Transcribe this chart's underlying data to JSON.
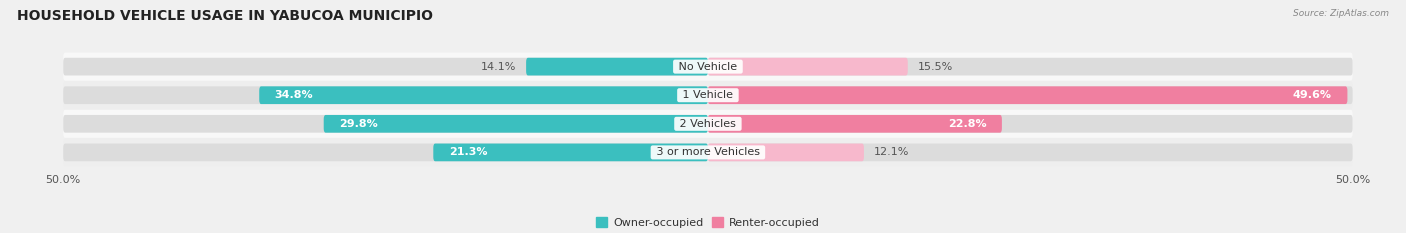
{
  "title": "HOUSEHOLD VEHICLE USAGE IN YABUCOA MUNICIPIO",
  "source": "Source: ZipAtlas.com",
  "categories": [
    "No Vehicle",
    "1 Vehicle",
    "2 Vehicles",
    "3 or more Vehicles"
  ],
  "owner_values": [
    14.1,
    34.8,
    29.8,
    21.3
  ],
  "renter_values": [
    15.5,
    49.6,
    22.8,
    12.1
  ],
  "owner_color": "#3bbfbf",
  "renter_color": "#f07fa0",
  "renter_color_light": "#f7b8cc",
  "axis_max": 50.0,
  "background_color": "#f0f0f0",
  "bar_bg_color": "#dcdcdc",
  "title_fontsize": 10,
  "label_fontsize": 8,
  "category_fontsize": 8,
  "axis_fontsize": 8,
  "bar_height": 0.62,
  "row_sep_color": "#ffffff"
}
